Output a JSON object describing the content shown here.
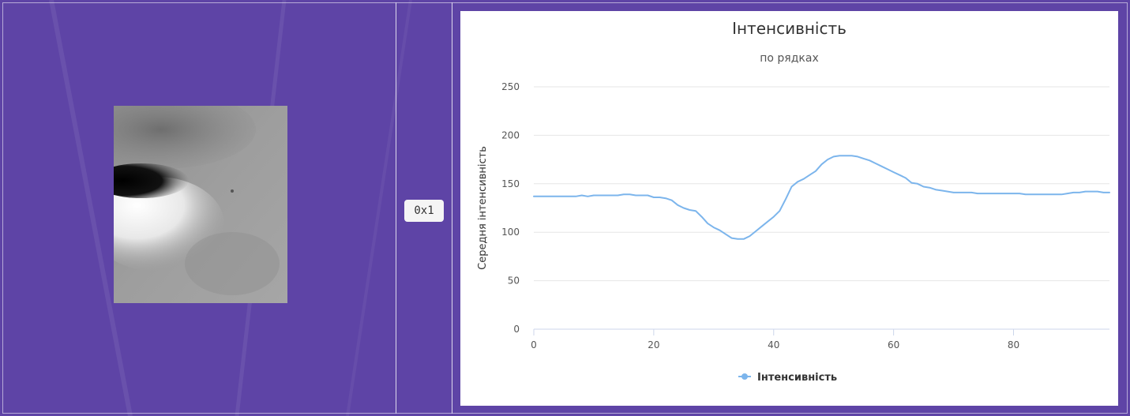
{
  "image_cell": {
    "coord_label": "0x1"
  },
  "colors": {
    "background": "#5e44a6",
    "series": "#7cb5ec",
    "grid": "#e6e6e6"
  },
  "chart_data": {
    "type": "line",
    "title": "Інтенсивність",
    "subtitle": "по рядках",
    "ylabel": "Середня інтенсивність",
    "xlabel": "",
    "xlim": [
      0,
      96
    ],
    "ylim": [
      0,
      250
    ],
    "xticks": [
      0,
      20,
      40,
      60,
      80
    ],
    "yticks": [
      0,
      50,
      100,
      150,
      200,
      250
    ],
    "grid": true,
    "legend_position": "bottom-center",
    "series": [
      {
        "name": "Інтенсивність",
        "color": "#7cb5ec",
        "x": [
          0,
          1,
          2,
          3,
          4,
          5,
          6,
          7,
          8,
          9,
          10,
          11,
          12,
          13,
          14,
          15,
          16,
          17,
          18,
          19,
          20,
          21,
          22,
          23,
          24,
          25,
          26,
          27,
          28,
          29,
          30,
          31,
          32,
          33,
          34,
          35,
          36,
          37,
          38,
          39,
          40,
          41,
          42,
          43,
          44,
          45,
          46,
          47,
          48,
          49,
          50,
          51,
          52,
          53,
          54,
          55,
          56,
          57,
          58,
          59,
          60,
          61,
          62,
          63,
          64,
          65,
          66,
          67,
          68,
          69,
          70,
          71,
          72,
          73,
          74,
          75,
          76,
          77,
          78,
          79,
          80,
          81,
          82,
          83,
          84,
          85,
          86,
          87,
          88,
          89,
          90,
          91,
          92,
          93,
          94,
          95,
          96
        ],
        "values": [
          137,
          137,
          137,
          137,
          137,
          137,
          137,
          137,
          138,
          137,
          138,
          138,
          138,
          138,
          138,
          139,
          139,
          138,
          138,
          138,
          136,
          136,
          135,
          133,
          128,
          125,
          123,
          122,
          116,
          109,
          105,
          102,
          98,
          94,
          93,
          93,
          96,
          101,
          106,
          111,
          116,
          122,
          134,
          147,
          152,
          155,
          159,
          163,
          170,
          175,
          178,
          179,
          179,
          179,
          178,
          176,
          174,
          171,
          168,
          165,
          162,
          159,
          156,
          151,
          150,
          147,
          146,
          144,
          143,
          142,
          141,
          141,
          141,
          141,
          140,
          140,
          140,
          140,
          140,
          140,
          140,
          140,
          139,
          139,
          139,
          139,
          139,
          139,
          139,
          140,
          141,
          141,
          142,
          142,
          142,
          141,
          141
        ]
      }
    ]
  }
}
